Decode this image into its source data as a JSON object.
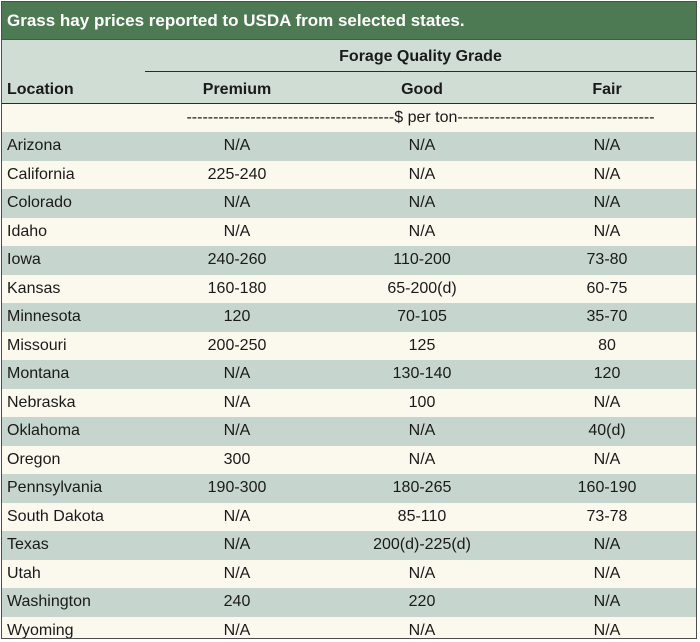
{
  "title": "Grass hay prices reported to USDA from selected states.",
  "header": {
    "group": "Forage Quality Grade",
    "location": "Location",
    "columns": [
      "Premium",
      "Good",
      "Fair"
    ],
    "units": "---------------------------------------$ per ton-------------------------------------"
  },
  "rows": [
    {
      "location": "Arizona",
      "premium": "N/A",
      "good": "N/A",
      "fair": "N/A"
    },
    {
      "location": "California",
      "premium": "225-240",
      "good": "N/A",
      "fair": "N/A"
    },
    {
      "location": "Colorado",
      "premium": "N/A",
      "good": "N/A",
      "fair": "N/A"
    },
    {
      "location": "Idaho",
      "premium": "N/A",
      "good": "N/A",
      "fair": "N/A"
    },
    {
      "location": "Iowa",
      "premium": "240-260",
      "good": "110-200",
      "fair": "73-80"
    },
    {
      "location": "Kansas",
      "premium": "160-180",
      "good": "65-200(d)",
      "fair": "60-75"
    },
    {
      "location": "Minnesota",
      "premium": "120",
      "good": "70-105",
      "fair": "35-70"
    },
    {
      "location": "Missouri",
      "premium": "200-250",
      "good": "125",
      "fair": "80"
    },
    {
      "location": "Montana",
      "premium": "N/A",
      "good": "130-140",
      "fair": "120"
    },
    {
      "location": "Nebraska",
      "premium": "N/A",
      "good": "100",
      "fair": "N/A"
    },
    {
      "location": "Oklahoma",
      "premium": "N/A",
      "good": "N/A",
      "fair": "40(d)"
    },
    {
      "location": "Oregon",
      "premium": "300",
      "good": "N/A",
      "fair": "N/A"
    },
    {
      "location": "Pennsylvania",
      "premium": "190-300",
      "good": "180-265",
      "fair": "160-190"
    },
    {
      "location": "South Dakota",
      "premium": "N/A",
      "good": "85-110",
      "fair": "73-78"
    },
    {
      "location": "Texas",
      "premium": "N/A",
      "good": "200(d)-225(d)",
      "fair": "N/A"
    },
    {
      "location": "Utah",
      "premium": "N/A",
      "good": "N/A",
      "fair": "N/A"
    },
    {
      "location": "Washington",
      "premium": "240",
      "good": "220",
      "fair": "N/A"
    },
    {
      "location": "Wyoming",
      "premium": "N/A",
      "good": "N/A",
      "fair": "N/A"
    }
  ]
}
